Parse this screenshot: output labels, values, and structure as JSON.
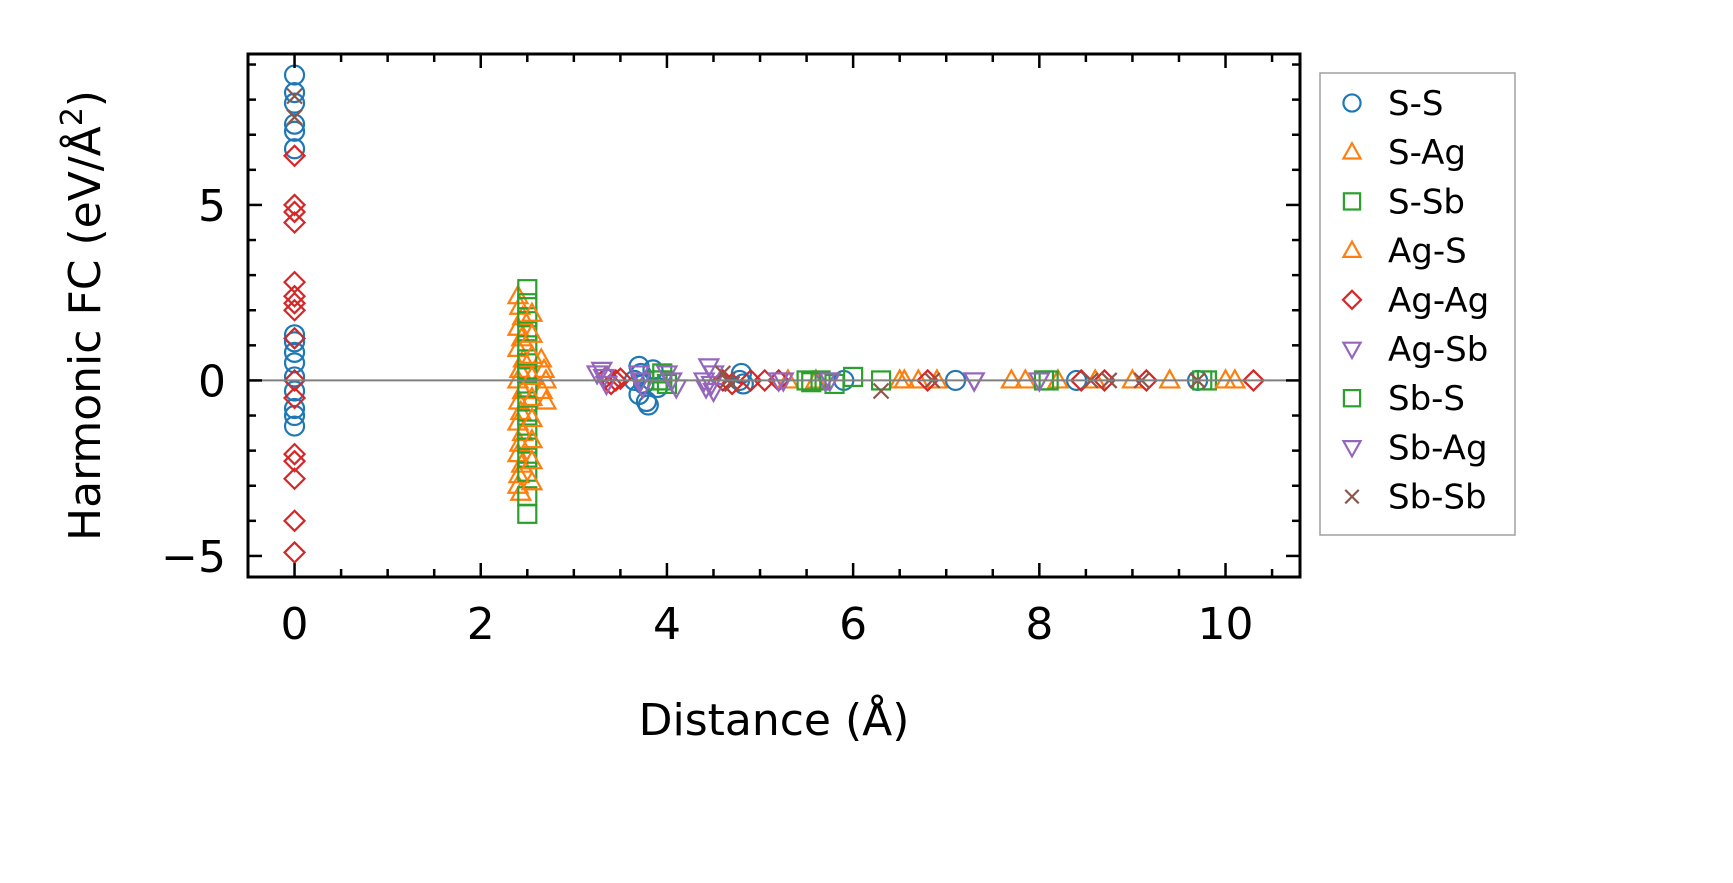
{
  "chart_data": {
    "type": "scatter",
    "xlabel": "Distance (Å)",
    "ylabel_main": "Harmonic FC (eV/Å",
    "ylabel_sup": "2",
    "ylabel_close": ")",
    "xlim": [
      -0.5,
      10.8
    ],
    "ylim": [
      -5.6,
      9.3
    ],
    "xticks": [
      0,
      2,
      4,
      6,
      8,
      10
    ],
    "xtick_labels": [
      "0",
      "2",
      "4",
      "6",
      "8",
      "10"
    ],
    "yticks": [
      -5,
      0,
      5
    ],
    "ytick_labels": [
      "−5",
      "0",
      "5"
    ],
    "grid": false,
    "zero_line": true,
    "legend_position": "right-outside",
    "series": [
      {
        "name": "S-S",
        "marker": "circle",
        "color": "#1f77b4",
        "points": [
          [
            0,
            8.7
          ],
          [
            0,
            8.2
          ],
          [
            0,
            7.9
          ],
          [
            0,
            7.3
          ],
          [
            0,
            7.1
          ],
          [
            0,
            6.6
          ],
          [
            0,
            1.3
          ],
          [
            0,
            1.1
          ],
          [
            0,
            0.8
          ],
          [
            0,
            0.5
          ],
          [
            0,
            0.1
          ],
          [
            0,
            -0.3
          ],
          [
            0,
            -0.8
          ],
          [
            0,
            -1.0
          ],
          [
            0,
            -1.3
          ],
          [
            3.7,
            0.4
          ],
          [
            3.72,
            0.2
          ],
          [
            3.75,
            -0.1
          ],
          [
            3.7,
            -0.4
          ],
          [
            3.78,
            -0.6
          ],
          [
            3.85,
            0.3
          ],
          [
            3.9,
            -0.2
          ],
          [
            3.65,
            0.0
          ],
          [
            3.8,
            -0.7
          ],
          [
            4.8,
            0.2
          ],
          [
            4.82,
            -0.1
          ],
          [
            4.78,
            0.0
          ],
          [
            5.9,
            0.0
          ],
          [
            7.1,
            0.0
          ],
          [
            8.4,
            0.0
          ],
          [
            9.7,
            0.0
          ]
        ]
      },
      {
        "name": "S-Ag",
        "marker": "triangle-up",
        "color": "#ff7f0e",
        "points": [
          [
            2.4,
            2.4
          ],
          [
            2.42,
            2.1
          ],
          [
            2.45,
            1.8
          ],
          [
            2.4,
            1.5
          ],
          [
            2.44,
            1.2
          ],
          [
            2.4,
            0.9
          ],
          [
            2.46,
            0.6
          ],
          [
            2.42,
            0.3
          ],
          [
            2.4,
            0.0
          ],
          [
            2.45,
            -0.3
          ],
          [
            2.41,
            -0.6
          ],
          [
            2.43,
            -0.9
          ],
          [
            2.4,
            -1.2
          ],
          [
            2.45,
            -1.5
          ],
          [
            2.42,
            -1.8
          ],
          [
            2.4,
            -2.1
          ],
          [
            2.44,
            -2.4
          ],
          [
            2.41,
            -2.7
          ],
          [
            2.4,
            -3.0
          ],
          [
            2.43,
            -3.2
          ],
          [
            2.65,
            0.6
          ],
          [
            2.68,
            0.3
          ],
          [
            2.7,
            0.0
          ],
          [
            2.66,
            -0.3
          ],
          [
            2.7,
            -0.6
          ],
          [
            5.3,
            0.0
          ],
          [
            5.6,
            0.0
          ],
          [
            6.5,
            0.0
          ],
          [
            6.7,
            0.0
          ],
          [
            6.9,
            0.0
          ],
          [
            7.7,
            0.0
          ],
          [
            7.85,
            0.0
          ],
          [
            8.2,
            0.0
          ],
          [
            9.0,
            0.0
          ],
          [
            9.4,
            0.0
          ],
          [
            10.1,
            0.0
          ]
        ]
      },
      {
        "name": "S-Sb",
        "marker": "square",
        "color": "#2ca02c",
        "points": [
          [
            2.5,
            2.6
          ],
          [
            2.5,
            2.2
          ],
          [
            2.5,
            1.8
          ],
          [
            2.5,
            1.4
          ],
          [
            2.5,
            1.0
          ],
          [
            2.5,
            0.6
          ],
          [
            2.5,
            0.2
          ],
          [
            2.5,
            -0.2
          ],
          [
            2.5,
            -0.6
          ],
          [
            2.5,
            -1.0
          ],
          [
            2.5,
            -1.4
          ],
          [
            2.5,
            -1.8
          ],
          [
            2.5,
            -2.2
          ],
          [
            2.5,
            -2.6
          ],
          [
            2.5,
            -3.3
          ],
          [
            2.5,
            -3.8
          ],
          [
            3.95,
            0.2
          ],
          [
            4.0,
            -0.1
          ],
          [
            3.9,
            0.0
          ],
          [
            5.5,
            0.0
          ],
          [
            5.65,
            0.0
          ],
          [
            5.8,
            -0.1
          ],
          [
            6.0,
            0.1
          ],
          [
            6.3,
            0.0
          ],
          [
            8.1,
            0.0
          ],
          [
            9.8,
            0.0
          ]
        ]
      },
      {
        "name": "Ag-S",
        "marker": "triangle-up",
        "color": "#ff7f0e",
        "points": [
          [
            2.55,
            1.9
          ],
          [
            2.55,
            1.3
          ],
          [
            2.55,
            0.7
          ],
          [
            2.55,
            0.1
          ],
          [
            2.55,
            -0.5
          ],
          [
            2.55,
            -1.1
          ],
          [
            2.55,
            -1.7
          ],
          [
            2.55,
            -2.3
          ],
          [
            2.55,
            -2.9
          ],
          [
            6.55,
            0.0
          ],
          [
            8.6,
            0.0
          ],
          [
            10.0,
            0.0
          ]
        ]
      },
      {
        "name": "Ag-Ag",
        "marker": "diamond",
        "color": "#d62728",
        "points": [
          [
            0,
            6.4
          ],
          [
            0,
            5.0
          ],
          [
            0,
            4.8
          ],
          [
            0,
            4.5
          ],
          [
            0,
            2.8
          ],
          [
            0,
            2.4
          ],
          [
            0,
            2.2
          ],
          [
            0,
            2.0
          ],
          [
            0,
            1.2
          ],
          [
            0,
            0.0
          ],
          [
            0,
            -0.5
          ],
          [
            0,
            -2.1
          ],
          [
            0,
            -2.3
          ],
          [
            0,
            -2.8
          ],
          [
            0,
            -4.0
          ],
          [
            0,
            -4.9
          ],
          [
            3.35,
            0.1
          ],
          [
            3.4,
            -0.1
          ],
          [
            3.45,
            0.0
          ],
          [
            3.5,
            0.05
          ],
          [
            4.6,
            0.0
          ],
          [
            4.7,
            -0.1
          ],
          [
            4.9,
            0.0
          ],
          [
            5.05,
            0.0
          ],
          [
            5.2,
            0.0
          ],
          [
            6.8,
            0.0
          ],
          [
            8.45,
            0.0
          ],
          [
            8.7,
            0.0
          ],
          [
            9.15,
            0.0
          ],
          [
            10.3,
            0.0
          ]
        ]
      },
      {
        "name": "Ag-Sb",
        "marker": "triangle-down",
        "color": "#9467bd",
        "points": [
          [
            3.3,
            0.3
          ],
          [
            3.32,
            0.1
          ],
          [
            3.35,
            -0.1
          ],
          [
            4.45,
            0.4
          ],
          [
            4.5,
            0.2
          ],
          [
            4.48,
            -0.1
          ],
          [
            4.5,
            -0.3
          ],
          [
            5.25,
            0.0
          ],
          [
            5.7,
            0.0
          ],
          [
            7.3,
            0.0
          ]
        ]
      },
      {
        "name": "Sb-S",
        "marker": "square",
        "color": "#2ca02c",
        "points": [
          [
            3.95,
            0.0
          ],
          [
            5.55,
            -0.05
          ],
          [
            8.05,
            0.0
          ],
          [
            9.75,
            0.0
          ]
        ]
      },
      {
        "name": "Sb-Ag",
        "marker": "triangle-down",
        "color": "#9467bd",
        "points": [
          [
            3.25,
            0.2
          ],
          [
            3.7,
            0.2
          ],
          [
            3.72,
            0.0
          ],
          [
            3.74,
            -0.2
          ],
          [
            4.0,
            0.2
          ],
          [
            4.05,
            0.0
          ],
          [
            4.1,
            -0.2
          ],
          [
            4.4,
            0.0
          ],
          [
            4.42,
            -0.2
          ],
          [
            5.2,
            0.0
          ],
          [
            5.75,
            0.0
          ],
          [
            7.3,
            0.0
          ],
          [
            8.0,
            0.0
          ]
        ]
      },
      {
        "name": "Sb-Sb",
        "marker": "x",
        "color": "#8c564b",
        "points": [
          [
            0,
            8.1
          ],
          [
            0,
            7.5
          ],
          [
            4.6,
            0.2
          ],
          [
            4.65,
            0.0
          ],
          [
            4.7,
            -0.1
          ],
          [
            6.3,
            -0.3
          ],
          [
            6.85,
            0.0
          ],
          [
            8.55,
            0.0
          ],
          [
            8.75,
            0.0
          ],
          [
            9.1,
            0.0
          ],
          [
            9.7,
            0.0
          ]
        ]
      }
    ]
  }
}
